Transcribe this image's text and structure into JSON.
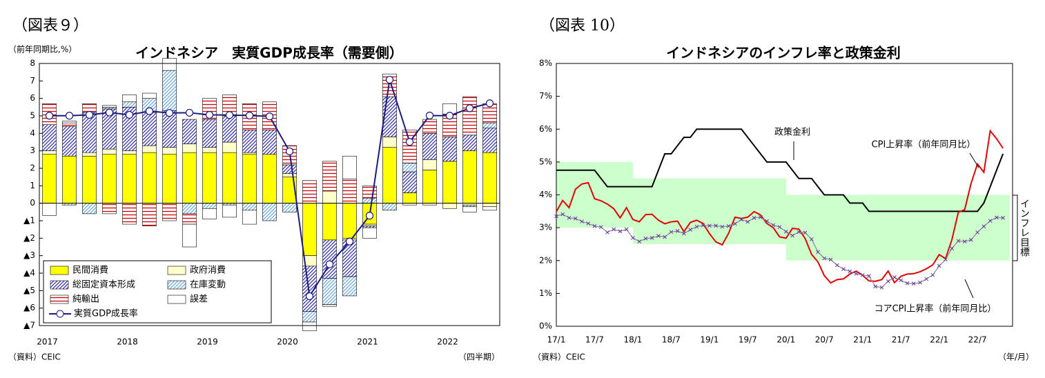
{
  "chart_data": [
    {
      "type": "bar",
      "stacked": true,
      "figure_label": "（図表９）",
      "title": "インドネシア　実質GDP成長率（需要側）",
      "y_label": "（前年同期比,%）",
      "source": "（資料）CEIC",
      "x_unit": "（四半期）",
      "legend": "lower left",
      "grid": false,
      "categories": [
        "2017",
        null,
        null,
        null,
        "2018",
        null,
        null,
        null,
        "2019",
        null,
        null,
        null,
        "2020",
        null,
        null,
        null,
        "2021",
        null,
        null,
        null,
        "2022",
        null,
        null
      ],
      "ylim": [
        -7,
        8
      ],
      "yticks": [
        {
          "value": -7,
          "label": "▲7"
        },
        {
          "value": -6,
          "label": "▲6"
        },
        {
          "value": -5,
          "label": "▲5"
        },
        {
          "value": -4,
          "label": "▲4"
        },
        {
          "value": -3,
          "label": "▲3"
        },
        {
          "value": -2,
          "label": "▲2"
        },
        {
          "value": -1,
          "label": "▲1"
        },
        0,
        1,
        2,
        3,
        4,
        5,
        6,
        7,
        8
      ],
      "series": [
        {
          "name": "民間消費",
          "color": "#ffff00",
          "values": [
            2.8,
            2.7,
            2.7,
            2.8,
            2.8,
            2.9,
            2.8,
            2.9,
            2.9,
            2.9,
            2.8,
            2.8,
            1.5,
            -3.0,
            -2.1,
            -2.0,
            -1.2,
            3.2,
            0.6,
            1.9,
            2.4,
            3.0,
            2.9
          ]
        },
        {
          "name": "政府消費",
          "color": "#ffffcc",
          "values": [
            0.2,
            0.0,
            0.2,
            0.3,
            0.2,
            0.4,
            0.4,
            0.5,
            0.3,
            0.6,
            0.1,
            0.0,
            0.2,
            -0.6,
            0.7,
            -0.1,
            -0.1,
            0.6,
            0.0,
            0.6,
            -0.3,
            -0.1,
            -0.2
          ]
        },
        {
          "name": "総固定資本形成",
          "color": "#3333aa",
          "hatch": "diagonal",
          "values": [
            1.5,
            1.7,
            2.3,
            2.3,
            2.5,
            1.9,
            2.1,
            1.4,
            1.6,
            1.5,
            1.3,
            1.4,
            0.5,
            -2.6,
            -2.2,
            -2.1,
            -0.1,
            2.3,
            1.2,
            1.5,
            1.4,
            0.9,
            1.4
          ]
        },
        {
          "name": "在庫変動",
          "color": "#6fa8dc",
          "hatch": "diagonal",
          "values": [
            0.0,
            -0.1,
            -0.6,
            0.1,
            0.3,
            0.8,
            2.3,
            -0.6,
            -0.3,
            -0.1,
            -0.4,
            -1.0,
            -0.5,
            -0.6,
            -1.5,
            -1.1,
            0.3,
            -0.4,
            0.5,
            0.0,
            0.0,
            -0.1,
            0.3
          ]
        },
        {
          "name": "純輸出",
          "color": "#cc0000",
          "hatch": "horizontal",
          "values": [
            1.2,
            0.2,
            0.5,
            -0.6,
            -1.2,
            -1.3,
            -1.0,
            -0.6,
            1.2,
            1.2,
            1.5,
            1.6,
            1.1,
            1.3,
            1.7,
            1.4,
            0.7,
            1.3,
            1.9,
            0.8,
            1.3,
            2.2,
            1.1
          ]
        },
        {
          "name": "誤差",
          "color": "#ffffff",
          "values": [
            -0.7,
            0.1,
            0.0,
            0.1,
            0.4,
            0.3,
            0.7,
            -1.3,
            -0.6,
            -0.7,
            -0.8,
            0.0,
            0.0,
            -0.5,
            -0.1,
            1.3,
            -0.6,
            0.0,
            -0.1,
            -0.1,
            0.6,
            -0.3,
            -0.2
          ]
        },
        {
          "name": "実質GDP成長率",
          "type": "line",
          "color": "#1a1a80",
          "values": [
            5.01,
            5.01,
            5.06,
            5.19,
            5.06,
            5.27,
            5.17,
            5.18,
            5.06,
            5.05,
            5.02,
            4.97,
            2.97,
            -5.32,
            -3.49,
            -2.19,
            -0.71,
            7.07,
            3.51,
            5.02,
            5.01,
            5.44,
            5.72
          ]
        }
      ]
    },
    {
      "type": "line",
      "figure_label": "（図表 10）",
      "title": "インドネシアのインフレ率と政策金利",
      "source": "（資料）CEIC",
      "x_unit": "（年/月）",
      "grid": false,
      "categories": [
        "17/1",
        null,
        null,
        null,
        null,
        null,
        "17/7",
        null,
        null,
        null,
        null,
        null,
        "18/1",
        null,
        null,
        null,
        null,
        null,
        "18/7",
        null,
        null,
        null,
        null,
        null,
        "19/1",
        null,
        null,
        null,
        null,
        null,
        "19/7",
        null,
        null,
        null,
        null,
        null,
        "20/1",
        null,
        null,
        null,
        null,
        null,
        "20/7",
        null,
        null,
        null,
        null,
        null,
        "21/1",
        null,
        null,
        null,
        null,
        null,
        "21/7",
        null,
        null,
        null,
        null,
        null,
        "22/1",
        null,
        null,
        null,
        null,
        null,
        "22/7",
        null,
        null,
        null,
        null
      ],
      "ylim": [
        0,
        8
      ],
      "yticks": [
        {
          "value": 0,
          "label": "0%"
        },
        {
          "value": 1,
          "label": "1%"
        },
        {
          "value": 2,
          "label": "2%"
        },
        {
          "value": 3,
          "label": "3%"
        },
        {
          "value": 4,
          "label": "4%"
        },
        {
          "value": 5,
          "label": "5%"
        },
        {
          "value": 6,
          "label": "6%"
        },
        {
          "value": 7,
          "label": "7%"
        },
        {
          "value": 8,
          "label": "8%"
        }
      ],
      "band": {
        "label": "インフレ目標",
        "color": "#ccffcc",
        "lower": [
          3,
          3,
          3,
          3,
          3,
          3,
          3,
          3,
          3,
          3,
          3,
          3,
          2.5,
          2.5,
          2.5,
          2.5,
          2.5,
          2.5,
          2.5,
          2.5,
          2.5,
          2.5,
          2.5,
          2.5,
          2.5,
          2.5,
          2.5,
          2.5,
          2.5,
          2.5,
          2.5,
          2.5,
          2.5,
          2.5,
          2.5,
          2.5,
          2,
          2,
          2,
          2,
          2,
          2,
          2,
          2,
          2,
          2,
          2,
          2,
          2,
          2,
          2,
          2,
          2,
          2,
          2,
          2,
          2,
          2,
          2,
          2,
          2,
          2,
          2,
          2,
          2,
          2,
          2,
          2,
          2,
          2,
          2
        ],
        "upper": [
          5,
          5,
          5,
          5,
          5,
          5,
          5,
          5,
          5,
          5,
          5,
          5,
          4.5,
          4.5,
          4.5,
          4.5,
          4.5,
          4.5,
          4.5,
          4.5,
          4.5,
          4.5,
          4.5,
          4.5,
          4.5,
          4.5,
          4.5,
          4.5,
          4.5,
          4.5,
          4.5,
          4.5,
          4.5,
          4.5,
          4.5,
          4.5,
          4,
          4,
          4,
          4,
          4,
          4,
          4,
          4,
          4,
          4,
          4,
          4,
          4,
          4,
          4,
          4,
          4,
          4,
          4,
          4,
          4,
          4,
          4,
          4,
          4,
          4,
          4,
          4,
          4,
          4,
          4,
          4,
          4,
          4,
          4
        ]
      },
      "series": [
        {
          "name": "政策金利",
          "color": "#000000",
          "values": [
            4.75,
            4.75,
            4.75,
            4.75,
            4.75,
            4.75,
            4.75,
            4.5,
            4.25,
            4.25,
            4.25,
            4.25,
            4.25,
            4.25,
            4.25,
            4.25,
            4.75,
            5.25,
            5.25,
            5.5,
            5.75,
            5.75,
            6,
            6,
            6,
            6,
            6,
            6,
            6,
            6,
            5.75,
            5.5,
            5.25,
            5,
            5,
            5,
            5,
            4.75,
            4.5,
            4.5,
            4.5,
            4.25,
            4,
            4,
            4,
            4,
            3.75,
            3.75,
            3.75,
            3.5,
            3.5,
            3.5,
            3.5,
            3.5,
            3.5,
            3.5,
            3.5,
            3.5,
            3.5,
            3.5,
            3.5,
            3.5,
            3.5,
            3.5,
            3.5,
            3.5,
            3.5,
            3.75,
            4.25,
            4.75,
            5.25
          ]
        },
        {
          "name": "CPI上昇率（前年同月比）",
          "color": "#e00000",
          "values": [
            3.49,
            3.83,
            3.61,
            4.17,
            4.33,
            4.37,
            3.88,
            3.82,
            3.72,
            3.58,
            3.3,
            3.61,
            3.25,
            3.18,
            3.4,
            3.41,
            3.23,
            3.12,
            3.18,
            3.2,
            2.88,
            3.16,
            3.23,
            3.13,
            2.82,
            2.57,
            2.48,
            2.83,
            3.32,
            3.28,
            3.32,
            3.49,
            3.39,
            3.13,
            3.0,
            2.72,
            2.68,
            2.98,
            2.96,
            2.67,
            2.19,
            1.96,
            1.54,
            1.32,
            1.42,
            1.44,
            1.59,
            1.68,
            1.55,
            1.38,
            1.37,
            1.42,
            1.68,
            1.33,
            1.52,
            1.59,
            1.6,
            1.66,
            1.75,
            1.87,
            2.18,
            2.06,
            2.64,
            3.47,
            3.55,
            4.35,
            4.94,
            4.69,
            5.95,
            5.71,
            5.42
          ]
        },
        {
          "name": "コアCPI上昇率（前年同月比）",
          "color": "#8c7fa8",
          "marker": "x",
          "values": [
            3.35,
            3.41,
            3.3,
            3.28,
            3.19,
            3.13,
            3.05,
            3.02,
            2.86,
            2.95,
            2.89,
            2.95,
            2.69,
            2.58,
            2.67,
            2.69,
            2.75,
            2.72,
            2.87,
            2.9,
            2.82,
            2.94,
            3.03,
            3.07,
            3.06,
            3.06,
            3.03,
            3.05,
            3.12,
            3.25,
            3.18,
            3.3,
            3.32,
            3.2,
            3.08,
            3.02,
            2.88,
            2.76,
            2.87,
            2.85,
            2.65,
            2.26,
            2.07,
            2.03,
            1.86,
            1.74,
            1.67,
            1.6,
            1.56,
            1.53,
            1.21,
            1.18,
            1.37,
            1.49,
            1.4,
            1.31,
            1.3,
            1.33,
            1.44,
            1.56,
            1.84,
            2.03,
            2.37,
            2.6,
            2.58,
            2.63,
            2.86,
            3.04,
            3.21,
            3.31,
            3.3
          ]
        }
      ]
    }
  ]
}
